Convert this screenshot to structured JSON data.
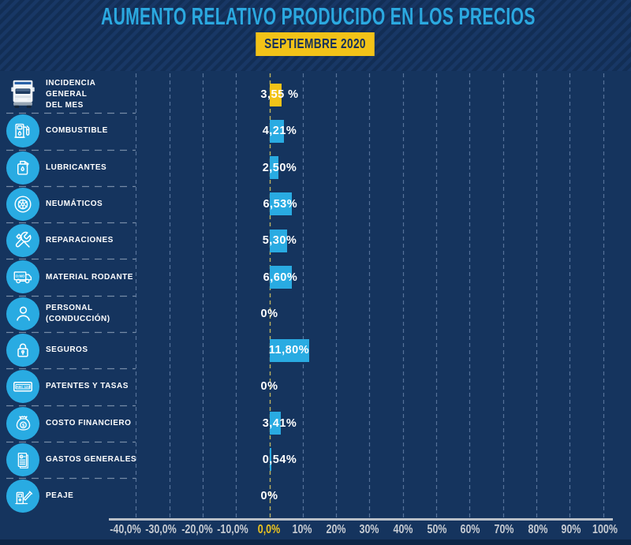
{
  "title": "AUMENTO RELATIVO PRODUCIDO EN LOS PRECIOS",
  "subtitle": "SEPTIEMBRE 2020",
  "colors": {
    "background": "#15345E",
    "accent_cyan": "#29ABE2",
    "accent_yellow": "#F2C318",
    "title_text": "#2BA9E0",
    "axis_label": "#C6CBD2",
    "zero_tick_label": "#EDC51F",
    "grid_line": "#7E99BD",
    "zero_grid_line": "#CFC060",
    "separator": "#AABACD"
  },
  "chart_data": {
    "type": "bar",
    "orientation": "horizontal",
    "title": "AUMENTO RELATIVO PRODUCIDO EN LOS PRECIOS",
    "subtitle": "SEPTIEMBRE 2020",
    "xlim": [
      -40,
      100
    ],
    "grid": true,
    "categories": [
      "INCIDENCIA GENERAL DEL MES",
      "COMBUSTIBLE",
      "LUBRICANTES",
      "NEUMÁTICOS",
      "REPARACIONES",
      "MATERIAL RODANTE",
      "PERSONAL (CONDUCCIÓN)",
      "SEGUROS",
      "PATENTES Y TASAS",
      "COSTO FINANCIERO",
      "GASTOS GENERALES",
      "PEAJE"
    ],
    "values": [
      3.55,
      4.21,
      2.5,
      6.53,
      5.3,
      6.6,
      0,
      11.8,
      0,
      3.41,
      0.54,
      0
    ],
    "rows": [
      {
        "label": "INCIDENCIA\nGENERAL\nDEL MES",
        "icon": "truck-front-icon",
        "value": 3.55,
        "value_label": "3,55 %",
        "bar_color": "#F2C318"
      },
      {
        "label": "COMBUSTIBLE",
        "icon": "fuel-pump-icon",
        "value": 4.21,
        "value_label": "4,21%",
        "bar_color": "#29ABE2"
      },
      {
        "label": "LUBRICANTES",
        "icon": "oil-can-icon",
        "value": 2.5,
        "value_label": "2,50%",
        "bar_color": "#29ABE2"
      },
      {
        "label": "NEUMÁTICOS",
        "icon": "tire-icon",
        "value": 6.53,
        "value_label": "6,53%",
        "bar_color": "#29ABE2"
      },
      {
        "label": "REPARACIONES",
        "icon": "tools-icon",
        "value": 5.3,
        "value_label": "5,30%",
        "bar_color": "#29ABE2"
      },
      {
        "label": "MATERIAL RODANTE",
        "icon": "truck-side-icon",
        "value": 6.6,
        "value_label": "6,60%",
        "bar_color": "#29ABE2"
      },
      {
        "label": "PERSONAL\n(CONDUCCIÓN)",
        "icon": "person-icon",
        "value": 0,
        "value_label": "0%",
        "bar_color": "#29ABE2"
      },
      {
        "label": "SEGUROS",
        "icon": "padlock-icon",
        "value": 11.8,
        "value_label": "11,80%",
        "bar_color": "#29ABE2"
      },
      {
        "label": "PATENTES Y TASAS",
        "icon": "license-plate-icon",
        "value": 0,
        "value_label": "0%",
        "bar_color": "#29ABE2"
      },
      {
        "label": "COSTO FINANCIERO",
        "icon": "money-bag-icon",
        "value": 3.41,
        "value_label": "3,41%",
        "bar_color": "#29ABE2"
      },
      {
        "label": "GASTOS GENERALES",
        "icon": "receipt-icon",
        "value": 0.54,
        "value_label": "0,54%",
        "bar_color": "#29ABE2"
      },
      {
        "label": "PEAJE",
        "icon": "toll-booth-icon",
        "value": 0,
        "value_label": "0%",
        "bar_color": "#29ABE2"
      }
    ],
    "x_ticks": [
      {
        "label": "-40,0%",
        "value": -40
      },
      {
        "label": "-30,0%",
        "value": -30
      },
      {
        "label": "-20,0%",
        "value": -20
      },
      {
        "label": "-10,0%",
        "value": -10
      },
      {
        "label": "0,0%",
        "value": 0
      },
      {
        "label": "10%",
        "value": 10
      },
      {
        "label": "20%",
        "value": 20
      },
      {
        "label": "30%",
        "value": 30
      },
      {
        "label": "40%",
        "value": 40
      },
      {
        "label": "50%",
        "value": 50
      },
      {
        "label": "60%",
        "value": 60
      },
      {
        "label": "70%",
        "value": 70
      },
      {
        "label": "80%",
        "value": 80
      },
      {
        "label": "90%",
        "value": 90
      },
      {
        "label": "100%",
        "value": 100
      }
    ]
  }
}
